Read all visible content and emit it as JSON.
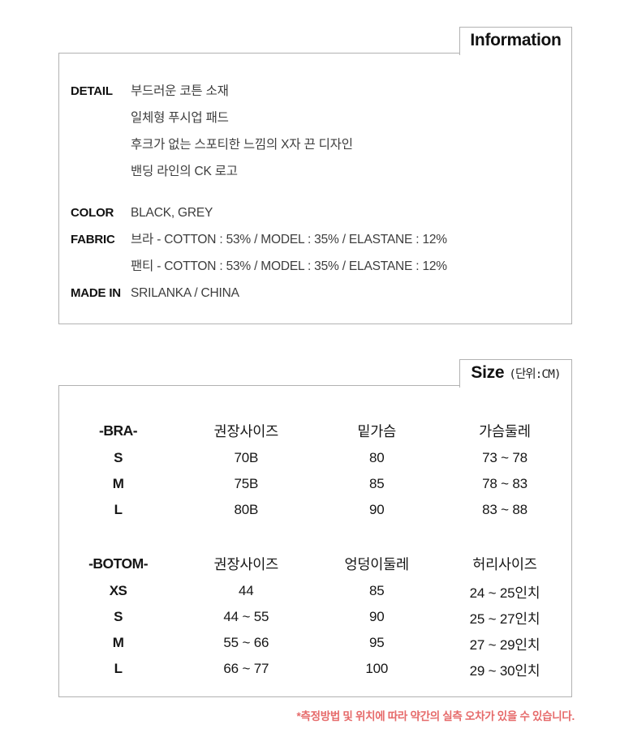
{
  "info_section": {
    "tab_label": "Information",
    "rows": [
      {
        "label": "DETAIL",
        "values": [
          "부드러운 코튼 소재",
          "일체형 푸시업 패드",
          "후크가 없는 스포티한 느낌의 X자 끈 디자인",
          "밴딩 라인의 CK 로고"
        ]
      },
      {
        "label": "COLOR",
        "values": [
          "BLACK, GREY"
        ]
      },
      {
        "label": "FABRIC",
        "values": [
          "브라 - COTTON : 53% / MODEL : 35% / ELASTANE : 12%",
          "팬티 - COTTON : 53% / MODEL : 35% / ELASTANE : 12%"
        ]
      },
      {
        "label": "MADE IN",
        "values": [
          "SRILANKA / CHINA"
        ]
      }
    ]
  },
  "size_section": {
    "tab_label": "Size",
    "unit_label": "(단위:CM)",
    "bra_table": {
      "headers": [
        "-BRA-",
        "권장사이즈",
        "밑가슴",
        "가슴둘레"
      ],
      "rows": [
        [
          "S",
          "70B",
          "80",
          "73 ~ 78"
        ],
        [
          "M",
          "75B",
          "85",
          "78 ~ 83"
        ],
        [
          "L",
          "80B",
          "90",
          "83 ~ 88"
        ]
      ]
    },
    "bottom_table": {
      "headers": [
        "-BOTOM-",
        "권장사이즈",
        "엉덩이둘레",
        "허리사이즈"
      ],
      "rows": [
        [
          "XS",
          "44",
          "85",
          "24 ~ 25인치"
        ],
        [
          "S",
          "44 ~ 55",
          "90",
          "25 ~ 27인치"
        ],
        [
          "M",
          "55 ~ 66",
          "95",
          "27 ~ 29인치"
        ],
        [
          "L",
          "66 ~ 77",
          "100",
          "29 ~ 30인치"
        ]
      ]
    }
  },
  "footnote": {
    "text": "*측정방법 및 위치에 따라 약간의 실측 오차가 있을 수 있습니다."
  },
  "colors": {
    "border": "#b2b2b2",
    "footnote": "#e66a6a",
    "text": "#1c1c1c"
  }
}
